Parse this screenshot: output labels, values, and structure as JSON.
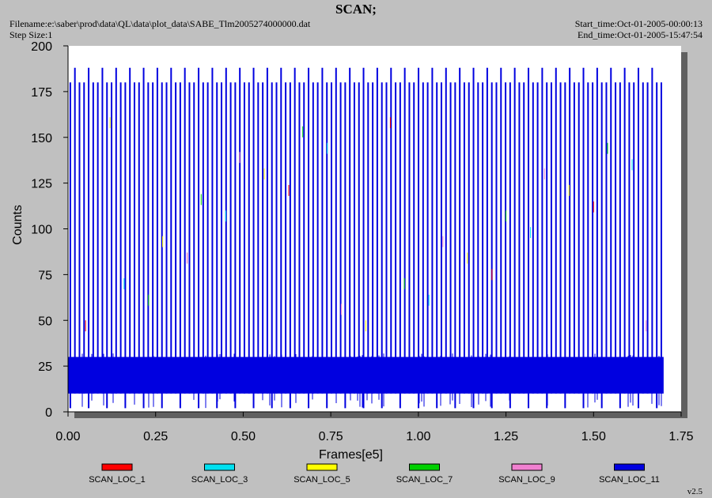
{
  "header": {
    "title": "SCAN;",
    "filename": "Filename:e:\\saber\\prod\\data\\QL\\data\\plot_data\\SABE_Tlm2005274000000.dat",
    "step_size": "Step Size:1",
    "start_time": "Start_time:Oct-01-2005-00:00:13",
    "end_time": "End_time:Oct-01-2005-15:47:54"
  },
  "footer": {
    "version": "v2.5"
  },
  "chart_data": {
    "type": "line",
    "title": "SCAN;",
    "xlabel": "Frames[e5]",
    "ylabel": "Counts",
    "xlim": [
      0,
      1.75
    ],
    "ylim": [
      0,
      200
    ],
    "x_ticks": [
      "0.00",
      "0.25",
      "0.50",
      "0.75",
      "1.00",
      "1.25",
      "1.50",
      "1.75"
    ],
    "y_ticks": [
      "0",
      "25",
      "50",
      "75",
      "100",
      "125",
      "150",
      "175",
      "200"
    ],
    "grid": false,
    "legend_position": "bottom",
    "series": [
      {
        "name": "SCAN_LOC_1",
        "color": "#ff0000",
        "x_range": [
          0,
          1.7
        ],
        "typical_range": [
          10,
          30
        ]
      },
      {
        "name": "SCAN_LOC_3",
        "color": "#00e0f0",
        "x_range": [
          0,
          1.7
        ],
        "typical_range": [
          10,
          30
        ]
      },
      {
        "name": "SCAN_LOC_5",
        "color": "#ffff00",
        "x_range": [
          0,
          1.7
        ],
        "typical_range": [
          10,
          30
        ]
      },
      {
        "name": "SCAN_LOC_7",
        "color": "#00d000",
        "x_range": [
          0,
          1.7
        ],
        "typical_range": [
          10,
          30
        ]
      },
      {
        "name": "SCAN_LOC_9",
        "color": "#f080d0",
        "x_range": [
          0,
          1.7
        ],
        "typical_range": [
          10,
          30
        ]
      },
      {
        "name": "SCAN_LOC_11",
        "color": "#0000e0",
        "x_range": [
          0,
          1.7
        ],
        "baseline_range": [
          10,
          30
        ],
        "spike_level": 180,
        "tall_spike_level": 188,
        "spike_count": 130
      }
    ]
  }
}
